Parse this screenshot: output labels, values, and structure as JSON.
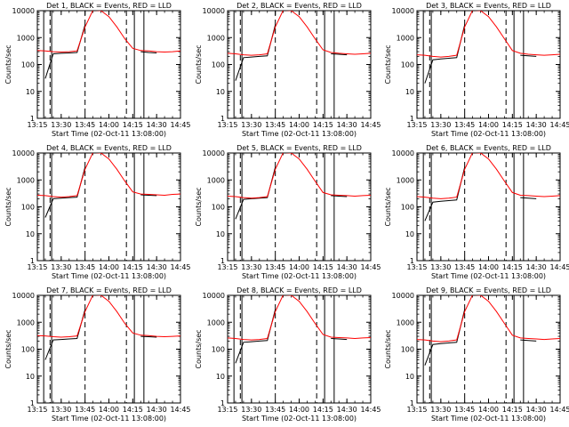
{
  "chart_data": [
    {
      "type": "line",
      "title": "Det 1, BLACK = Events, RED = LLD",
      "xlabel": "Start Time (02-Oct-11 13:08:00)",
      "ylabel": "Counts/sec",
      "yscale": "log",
      "ylim": [
        1,
        10000
      ],
      "x": [
        "13:15",
        "13:20",
        "13:25",
        "13:30",
        "13:35",
        "13:40",
        "13:45",
        "13:50",
        "13:55",
        "14:00",
        "14:05",
        "14:10",
        "14:15",
        "14:20",
        "14:25",
        "14:30",
        "14:35",
        "14:40",
        "14:45"
      ],
      "xticks": [
        "13:15",
        "13:30",
        "13:45",
        "14:00",
        "14:15",
        "14:30",
        "14:45"
      ],
      "series": [
        {
          "color": "#000000",
          "values": [
            null,
            30,
            250,
            260,
            270,
            280,
            3000,
            null,
            null,
            null,
            null,
            null,
            null,
            300,
            280,
            270,
            null,
            null,
            null
          ]
        },
        {
          "color": "#ff0000",
          "values": [
            330,
            320,
            300,
            290,
            300,
            320,
            2500,
            12000,
            10000,
            6000,
            2500,
            900,
            400,
            330,
            320,
            300,
            290,
            300,
            320
          ]
        }
      ],
      "dashed_lines": [
        "13:23",
        "13:45",
        "14:11"
      ],
      "solid_lines": [
        "13:19",
        "13:24",
        "14:16",
        "14:22"
      ]
    },
    {
      "type": "line",
      "title": "Det 2, BLACK = Events, RED = LLD",
      "xlabel": "Start Time (02-Oct-11 13:08:00)",
      "ylabel": "Counts/sec",
      "yscale": "log",
      "ylim": [
        1,
        10000
      ],
      "x": [
        "13:15",
        "13:20",
        "13:25",
        "13:30",
        "13:35",
        "13:40",
        "13:45",
        "13:50",
        "13:55",
        "14:00",
        "14:05",
        "14:10",
        "14:15",
        "14:20",
        "14:25",
        "14:30",
        "14:35",
        "14:40",
        "14:45"
      ],
      "xticks": [
        "13:15",
        "13:30",
        "13:45",
        "14:00",
        "14:15",
        "14:30",
        "14:45"
      ],
      "series": [
        {
          "color": "#000000",
          "values": [
            null,
            25,
            180,
            190,
            200,
            210,
            3000,
            null,
            null,
            null,
            null,
            null,
            null,
            250,
            240,
            230,
            null,
            null,
            null
          ]
        },
        {
          "color": "#ff0000",
          "values": [
            260,
            250,
            230,
            220,
            230,
            250,
            2500,
            12000,
            10000,
            6000,
            2500,
            900,
            350,
            280,
            260,
            250,
            240,
            250,
            260
          ]
        }
      ],
      "dashed_lines": [
        "13:23",
        "13:45",
        "14:11"
      ],
      "solid_lines": [
        "13:19",
        "13:24",
        "14:16",
        "14:22"
      ]
    },
    {
      "type": "line",
      "title": "Det 3, BLACK = Events, RED = LLD",
      "xlabel": "Start Time (02-Oct-11 13:08:00)",
      "ylabel": "Counts/sec",
      "yscale": "log",
      "ylim": [
        1,
        10000
      ],
      "x": [
        "13:15",
        "13:20",
        "13:25",
        "13:30",
        "13:35",
        "13:40",
        "13:45",
        "13:50",
        "13:55",
        "14:00",
        "14:05",
        "14:10",
        "14:15",
        "14:20",
        "14:25",
        "14:30",
        "14:35",
        "14:40",
        "14:45"
      ],
      "xticks": [
        "13:15",
        "13:30",
        "13:45",
        "14:00",
        "14:15",
        "14:30",
        "14:45"
      ],
      "series": [
        {
          "color": "#000000",
          "values": [
            null,
            20,
            150,
            160,
            170,
            180,
            3000,
            null,
            null,
            null,
            null,
            null,
            null,
            220,
            210,
            200,
            null,
            null,
            null
          ]
        },
        {
          "color": "#ff0000",
          "values": [
            230,
            220,
            200,
            190,
            200,
            220,
            2500,
            12000,
            10000,
            6000,
            2500,
            900,
            330,
            260,
            240,
            230,
            220,
            230,
            240
          ]
        }
      ],
      "dashed_lines": [
        "13:23",
        "13:45",
        "14:11"
      ],
      "solid_lines": [
        "13:19",
        "13:24",
        "14:16",
        "14:22"
      ]
    },
    {
      "type": "line",
      "title": "Det 4, BLACK = Events, RED = LLD",
      "xlabel": "Start Time (02-Oct-11 13:08:00)",
      "ylabel": "Counts/sec",
      "yscale": "log",
      "ylim": [
        1,
        10000
      ],
      "x": [
        "13:15",
        "13:20",
        "13:25",
        "13:30",
        "13:35",
        "13:40",
        "13:45",
        "13:50",
        "13:55",
        "14:00",
        "14:05",
        "14:10",
        "14:15",
        "14:20",
        "14:25",
        "14:30",
        "14:35",
        "14:40",
        "14:45"
      ],
      "xticks": [
        "13:15",
        "13:30",
        "13:45",
        "14:00",
        "14:15",
        "14:30",
        "14:45"
      ],
      "series": [
        {
          "color": "#000000",
          "values": [
            null,
            40,
            200,
            210,
            220,
            230,
            3000,
            null,
            null,
            null,
            null,
            null,
            null,
            280,
            270,
            260,
            null,
            null,
            null
          ]
        },
        {
          "color": "#ff0000",
          "values": [
            270,
            260,
            240,
            230,
            240,
            260,
            2500,
            12000,
            10000,
            6000,
            2500,
            900,
            360,
            300,
            290,
            280,
            270,
            290,
            300
          ]
        }
      ],
      "dashed_lines": [
        "13:23",
        "13:45",
        "14:11"
      ],
      "solid_lines": [
        "13:19",
        "13:24",
        "14:16",
        "14:22"
      ]
    },
    {
      "type": "line",
      "title": "Det 5, BLACK = Events, RED = LLD",
      "xlabel": "Start Time (02-Oct-11 13:08:00)",
      "ylabel": "Counts/sec",
      "yscale": "log",
      "ylim": [
        1,
        10000
      ],
      "x": [
        "13:15",
        "13:20",
        "13:25",
        "13:30",
        "13:35",
        "13:40",
        "13:45",
        "13:50",
        "13:55",
        "14:00",
        "14:05",
        "14:10",
        "14:15",
        "14:20",
        "14:25",
        "14:30",
        "14:35",
        "14:40",
        "14:45"
      ],
      "xticks": [
        "13:15",
        "13:30",
        "13:45",
        "14:00",
        "14:15",
        "14:30",
        "14:45"
      ],
      "series": [
        {
          "color": "#000000",
          "values": [
            null,
            35,
            190,
            200,
            210,
            220,
            3000,
            null,
            null,
            null,
            null,
            null,
            null,
            260,
            250,
            240,
            null,
            null,
            null
          ]
        },
        {
          "color": "#ff0000",
          "values": [
            250,
            240,
            220,
            210,
            220,
            240,
            2500,
            12000,
            10000,
            6000,
            2500,
            900,
            340,
            280,
            270,
            260,
            250,
            260,
            270
          ]
        }
      ],
      "dashed_lines": [
        "13:23",
        "13:45",
        "14:11"
      ],
      "solid_lines": [
        "13:19",
        "13:24",
        "14:16",
        "14:22"
      ]
    },
    {
      "type": "line",
      "title": "Det 6, BLACK = Events, RED = LLD",
      "xlabel": "Start Time (02-Oct-11 13:08:00)",
      "ylabel": "Counts/sec",
      "yscale": "log",
      "ylim": [
        1,
        10000
      ],
      "x": [
        "13:15",
        "13:20",
        "13:25",
        "13:30",
        "13:35",
        "13:40",
        "13:45",
        "13:50",
        "13:55",
        "14:00",
        "14:05",
        "14:10",
        "14:15",
        "14:20",
        "14:25",
        "14:30",
        "14:35",
        "14:40",
        "14:45"
      ],
      "xticks": [
        "13:15",
        "13:30",
        "13:45",
        "14:00",
        "14:15",
        "14:30",
        "14:45"
      ],
      "series": [
        {
          "color": "#000000",
          "values": [
            null,
            30,
            150,
            160,
            170,
            180,
            3000,
            null,
            null,
            null,
            null,
            null,
            null,
            220,
            210,
            200,
            null,
            null,
            null
          ]
        },
        {
          "color": "#ff0000",
          "values": [
            240,
            230,
            210,
            200,
            210,
            230,
            2500,
            12000,
            10000,
            6000,
            2500,
            900,
            340,
            270,
            260,
            250,
            240,
            250,
            260
          ]
        }
      ],
      "dashed_lines": [
        "13:23",
        "13:45",
        "14:11"
      ],
      "solid_lines": [
        "13:19",
        "13:24",
        "14:16",
        "14:22"
      ]
    },
    {
      "type": "line",
      "title": "Det 7, BLACK = Events, RED = LLD",
      "xlabel": "Start Time (02-Oct-11 13:08:00)",
      "ylabel": "Counts/sec",
      "yscale": "log",
      "ylim": [
        1,
        10000
      ],
      "x": [
        "13:15",
        "13:20",
        "13:25",
        "13:30",
        "13:35",
        "13:40",
        "13:45",
        "13:50",
        "13:55",
        "14:00",
        "14:05",
        "14:10",
        "14:15",
        "14:20",
        "14:25",
        "14:30",
        "14:35",
        "14:40",
        "14:45"
      ],
      "xticks": [
        "13:15",
        "13:30",
        "13:45",
        "14:00",
        "14:15",
        "14:30",
        "14:45"
      ],
      "series": [
        {
          "color": "#000000",
          "values": [
            null,
            40,
            220,
            230,
            240,
            250,
            3000,
            null,
            null,
            null,
            null,
            null,
            null,
            300,
            290,
            280,
            null,
            null,
            null
          ]
        },
        {
          "color": "#ff0000",
          "values": [
            320,
            310,
            290,
            280,
            290,
            310,
            2500,
            12000,
            10000,
            6000,
            2500,
            900,
            400,
            330,
            320,
            300,
            290,
            300,
            310
          ]
        }
      ],
      "dashed_lines": [
        "13:23",
        "13:45",
        "14:11"
      ],
      "solid_lines": [
        "13:19",
        "13:24",
        "14:16",
        "14:22"
      ]
    },
    {
      "type": "line",
      "title": "Det 8, BLACK = Events, RED = LLD",
      "xlabel": "Start Time (02-Oct-11 13:08:00)",
      "ylabel": "Counts/sec",
      "yscale": "log",
      "ylim": [
        1,
        10000
      ],
      "x": [
        "13:15",
        "13:20",
        "13:25",
        "13:30",
        "13:35",
        "13:40",
        "13:45",
        "13:50",
        "13:55",
        "14:00",
        "14:05",
        "14:10",
        "14:15",
        "14:20",
        "14:25",
        "14:30",
        "14:35",
        "14:40",
        "14:45"
      ],
      "xticks": [
        "13:15",
        "13:30",
        "13:45",
        "14:00",
        "14:15",
        "14:30",
        "14:45"
      ],
      "series": [
        {
          "color": "#000000",
          "values": [
            null,
            30,
            180,
            190,
            200,
            210,
            3000,
            null,
            null,
            null,
            null,
            null,
            null,
            250,
            240,
            230,
            null,
            null,
            null
          ]
        },
        {
          "color": "#ff0000",
          "values": [
            260,
            250,
            230,
            220,
            230,
            250,
            2500,
            12000,
            10000,
            6000,
            2500,
            900,
            350,
            280,
            270,
            260,
            250,
            260,
            270
          ]
        }
      ],
      "dashed_lines": [
        "13:23",
        "13:45",
        "14:11"
      ],
      "solid_lines": [
        "13:19",
        "13:24",
        "14:16",
        "14:22"
      ]
    },
    {
      "type": "line",
      "title": "Det 9, BLACK = Events, RED = LLD",
      "xlabel": "Start Time (02-Oct-11 13:08:00)",
      "ylabel": "Counts/sec",
      "yscale": "log",
      "ylim": [
        1,
        10000
      ],
      "x": [
        "13:15",
        "13:20",
        "13:25",
        "13:30",
        "13:35",
        "13:40",
        "13:45",
        "13:50",
        "13:55",
        "14:00",
        "14:05",
        "14:10",
        "14:15",
        "14:20",
        "14:25",
        "14:30",
        "14:35",
        "14:40",
        "14:45"
      ],
      "xticks": [
        "13:15",
        "13:30",
        "13:45",
        "14:00",
        "14:15",
        "14:30",
        "14:45"
      ],
      "series": [
        {
          "color": "#000000",
          "values": [
            null,
            25,
            150,
            160,
            170,
            180,
            3000,
            null,
            null,
            null,
            null,
            null,
            null,
            220,
            210,
            200,
            null,
            null,
            null
          ]
        },
        {
          "color": "#ff0000",
          "values": [
            230,
            220,
            200,
            190,
            200,
            220,
            2500,
            12000,
            10000,
            6000,
            2500,
            900,
            330,
            260,
            250,
            240,
            230,
            240,
            250
          ]
        }
      ],
      "dashed_lines": [
        "13:23",
        "13:45",
        "14:11"
      ],
      "solid_lines": [
        "13:19",
        "13:24",
        "14:16",
        "14:22"
      ]
    }
  ]
}
